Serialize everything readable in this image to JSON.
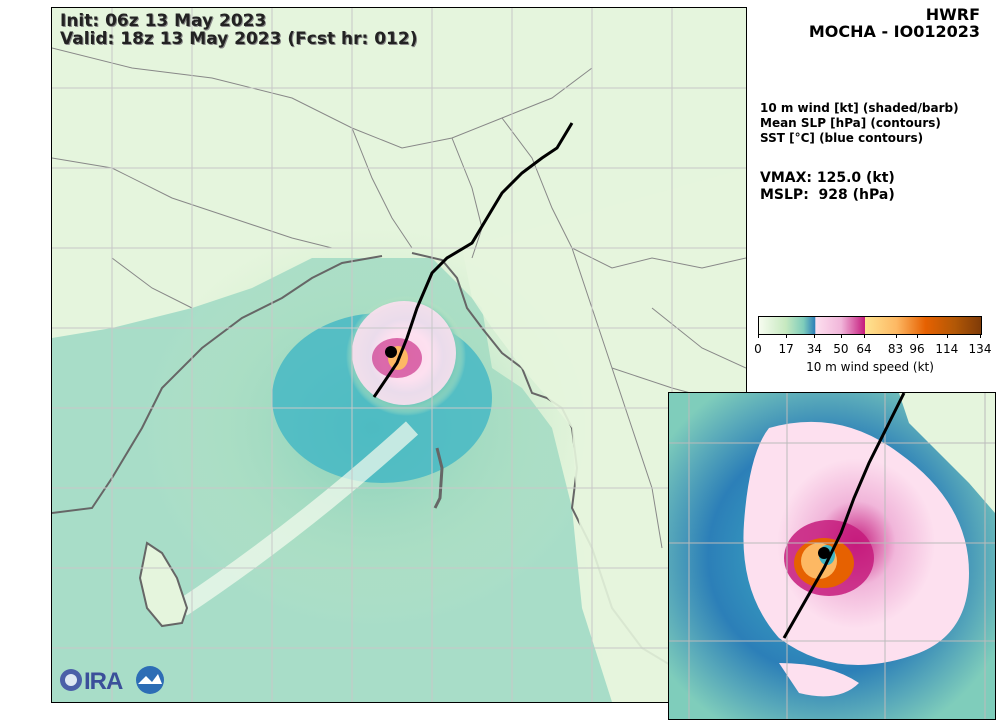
{
  "header": {
    "init_line": "Init:   06z 13 May 2023",
    "valid_line": "Valid: 18z 13 May 2023 (Fcst hr: 012)"
  },
  "title": {
    "model": "HWRF",
    "storm": "MOCHA - IO012023"
  },
  "fields": {
    "line1": "10 m wind [kt] (shaded/barb)",
    "line2": "Mean SLP [hPa] (contours)",
    "line3": "SST [°C] (blue contours)"
  },
  "stats": {
    "vmax": "VMAX: 125.0 (kt)",
    "mslp": "MSLP:  928 (hPa)"
  },
  "colorbar": {
    "ticks": [
      "0",
      "17",
      "34",
      "50",
      "64",
      "83",
      "96",
      "114",
      "134"
    ],
    "tick_values": [
      0,
      17,
      34,
      50,
      64,
      83,
      96,
      114,
      134
    ],
    "max": 134,
    "label": "10 m wind speed (kt)",
    "colors": [
      "#f7fcf0",
      "#c7e9c0",
      "#7fcdbb",
      "#41b6c4",
      "#2c7fb8",
      "#fde0ef",
      "#f1b6da",
      "#c51b7d",
      "#fee391",
      "#fdb863",
      "#e66101",
      "#b35806",
      "#7f3b08"
    ]
  },
  "logo": {
    "text": "CIRA"
  }
}
